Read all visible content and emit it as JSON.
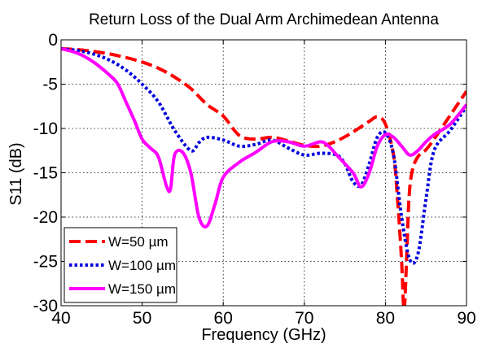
{
  "chart_data": {
    "type": "line",
    "title": "Return Loss of the Dual Arm Archimedean Antenna",
    "xlabel": "Frequency (GHz)",
    "ylabel": "S11 (dB)",
    "xlim": [
      40,
      90
    ],
    "ylim": [
      -30,
      0
    ],
    "xticks": [
      40,
      50,
      60,
      70,
      80,
      90
    ],
    "yticks": [
      0,
      -5,
      -10,
      -15,
      -20,
      -25,
      -30
    ],
    "grid": true,
    "legend_position": "bottom-left",
    "series": [
      {
        "name": "W=50 µm",
        "color": "#ff0000",
        "dash": "dashed",
        "x": [
          40,
          42,
          44,
          46,
          48,
          50,
          52,
          54,
          56,
          58,
          60,
          62,
          64,
          66,
          68,
          70,
          72,
          74,
          76,
          78,
          79,
          80,
          81,
          81.5,
          82,
          82.3,
          82.6,
          82.9,
          83.3,
          84,
          85,
          86,
          88,
          90
        ],
        "y": [
          -1.0,
          -1.1,
          -1.3,
          -1.6,
          -2.0,
          -2.5,
          -3.2,
          -4.2,
          -5.5,
          -7.3,
          -8.6,
          -10.8,
          -11.2,
          -11.0,
          -11.4,
          -11.9,
          -12.0,
          -11.4,
          -10.4,
          -9.2,
          -8.7,
          -9.5,
          -13.0,
          -18.0,
          -25.0,
          -30.5,
          -25.0,
          -18.0,
          -14.8,
          -13.2,
          -12.4,
          -11.2,
          -8.5,
          -5.8
        ]
      },
      {
        "name": "W=100 µm",
        "color": "#0000dd",
        "dash": "dotted",
        "x": [
          40,
          42,
          44,
          46,
          48,
          50,
          52,
          54,
          56,
          57,
          58,
          60,
          62,
          64,
          66,
          68,
          70,
          72,
          74,
          75,
          76,
          77,
          78,
          79,
          80,
          81,
          82,
          83,
          84,
          85,
          86,
          88,
          90
        ],
        "y": [
          -1.0,
          -1.2,
          -1.6,
          -2.3,
          -3.4,
          -5.0,
          -7.0,
          -10.2,
          -12.5,
          -11.6,
          -11.0,
          -11.3,
          -12.0,
          -11.8,
          -11.3,
          -12.2,
          -13.0,
          -12.8,
          -13.0,
          -14.0,
          -16.0,
          -16.4,
          -14.0,
          -11.0,
          -10.5,
          -13.0,
          -20.0,
          -24.8,
          -24.2,
          -18.0,
          -12.5,
          -10.2,
          -7.5
        ]
      },
      {
        "name": "W=150 µm",
        "color": "#ff00ff",
        "dash": "solid",
        "x": [
          40,
          42,
          44,
          46,
          47,
          48,
          49,
          50,
          51,
          52,
          53,
          53.5,
          54,
          55,
          56,
          57,
          58,
          59,
          60,
          62,
          64,
          66,
          68,
          70,
          72,
          73,
          74,
          76,
          77,
          78,
          79,
          80,
          81,
          82,
          83,
          84,
          85,
          86,
          88,
          90
        ],
        "y": [
          -1.0,
          -1.5,
          -2.5,
          -4.0,
          -5.0,
          -7.0,
          -9.0,
          -11.2,
          -12.2,
          -13.2,
          -16.5,
          -16.8,
          -13.0,
          -12.7,
          -15.0,
          -20.0,
          -21.0,
          -18.5,
          -15.5,
          -13.8,
          -12.7,
          -11.5,
          -11.5,
          -12.0,
          -11.5,
          -12.0,
          -13.0,
          -15.0,
          -16.6,
          -15.0,
          -12.0,
          -10.7,
          -11.0,
          -12.0,
          -13.0,
          -12.5,
          -11.5,
          -10.7,
          -9.5,
          -7.3
        ]
      }
    ]
  }
}
